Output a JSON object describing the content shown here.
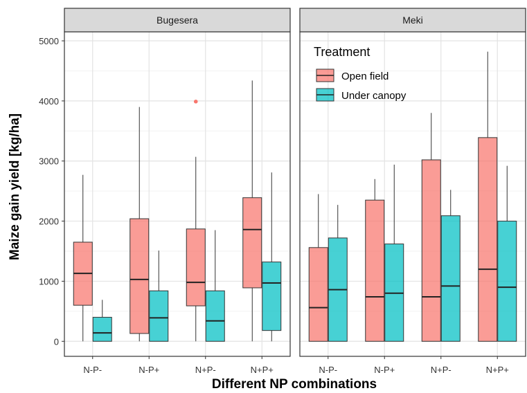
{
  "chart_data": {
    "type": "boxplot",
    "ylabel": "Maize gain yield [kg/ha]",
    "xlabel": "Different NP combinations",
    "categories": [
      "N-P-",
      "N-P+",
      "N+P-",
      "N+P+"
    ],
    "ylim": [
      -250,
      5150
    ],
    "yticks": [
      0,
      1000,
      2000,
      3000,
      4000,
      5000
    ],
    "grid": true,
    "legend": {
      "title": "Treatment",
      "placement": "top-right of second panel",
      "entries": [
        {
          "name": "Open field",
          "color": "#f8766d"
        },
        {
          "name": "Under canopy",
          "color": "#00bfc4"
        }
      ]
    },
    "panels": [
      {
        "name": "Bugesera",
        "groups": [
          {
            "category": "N-P-",
            "open": {
              "min": 0,
              "q1": 600,
              "median": 1130,
              "q3": 1650,
              "max": 2770,
              "outliers": []
            },
            "canopy": {
              "min": 0,
              "q1": 0,
              "median": 140,
              "q3": 400,
              "max": 690,
              "outliers": []
            }
          },
          {
            "category": "N-P+",
            "open": {
              "min": 0,
              "q1": 130,
              "median": 1030,
              "q3": 2040,
              "max": 3900,
              "outliers": []
            },
            "canopy": {
              "min": 0,
              "q1": 0,
              "median": 390,
              "q3": 840,
              "max": 1510,
              "outliers": []
            }
          },
          {
            "category": "N+P-",
            "open": {
              "min": 0,
              "q1": 590,
              "median": 980,
              "q3": 1870,
              "max": 3070,
              "outliers": [
                3990
              ]
            },
            "canopy": {
              "min": 0,
              "q1": 0,
              "median": 340,
              "q3": 840,
              "max": 1850,
              "outliers": []
            }
          },
          {
            "category": "N+P+",
            "open": {
              "min": 0,
              "q1": 890,
              "median": 1860,
              "q3": 2390,
              "max": 4340,
              "outliers": []
            },
            "canopy": {
              "min": 0,
              "q1": 180,
              "median": 970,
              "q3": 1320,
              "max": 2810,
              "outliers": []
            }
          }
        ]
      },
      {
        "name": "Meki",
        "groups": [
          {
            "category": "N-P-",
            "open": {
              "min": 0,
              "q1": 0,
              "median": 560,
              "q3": 1560,
              "max": 2450,
              "outliers": []
            },
            "canopy": {
              "min": 0,
              "q1": 0,
              "median": 860,
              "q3": 1720,
              "max": 2270,
              "outliers": []
            }
          },
          {
            "category": "N-P+",
            "open": {
              "min": 0,
              "q1": 0,
              "median": 740,
              "q3": 2350,
              "max": 2700,
              "outliers": []
            },
            "canopy": {
              "min": 0,
              "q1": 0,
              "median": 800,
              "q3": 1620,
              "max": 2940,
              "outliers": []
            }
          },
          {
            "category": "N+P-",
            "open": {
              "min": 0,
              "q1": 0,
              "median": 740,
              "q3": 3020,
              "max": 3800,
              "outliers": []
            },
            "canopy": {
              "min": 0,
              "q1": 0,
              "median": 920,
              "q3": 2090,
              "max": 2520,
              "outliers": []
            }
          },
          {
            "category": "N+P+",
            "open": {
              "min": 0,
              "q1": 0,
              "median": 1200,
              "q3": 3390,
              "max": 4820,
              "outliers": []
            },
            "canopy": {
              "min": 0,
              "q1": 0,
              "median": 900,
              "q3": 2000,
              "max": 2920,
              "outliers": []
            }
          }
        ]
      }
    ]
  }
}
